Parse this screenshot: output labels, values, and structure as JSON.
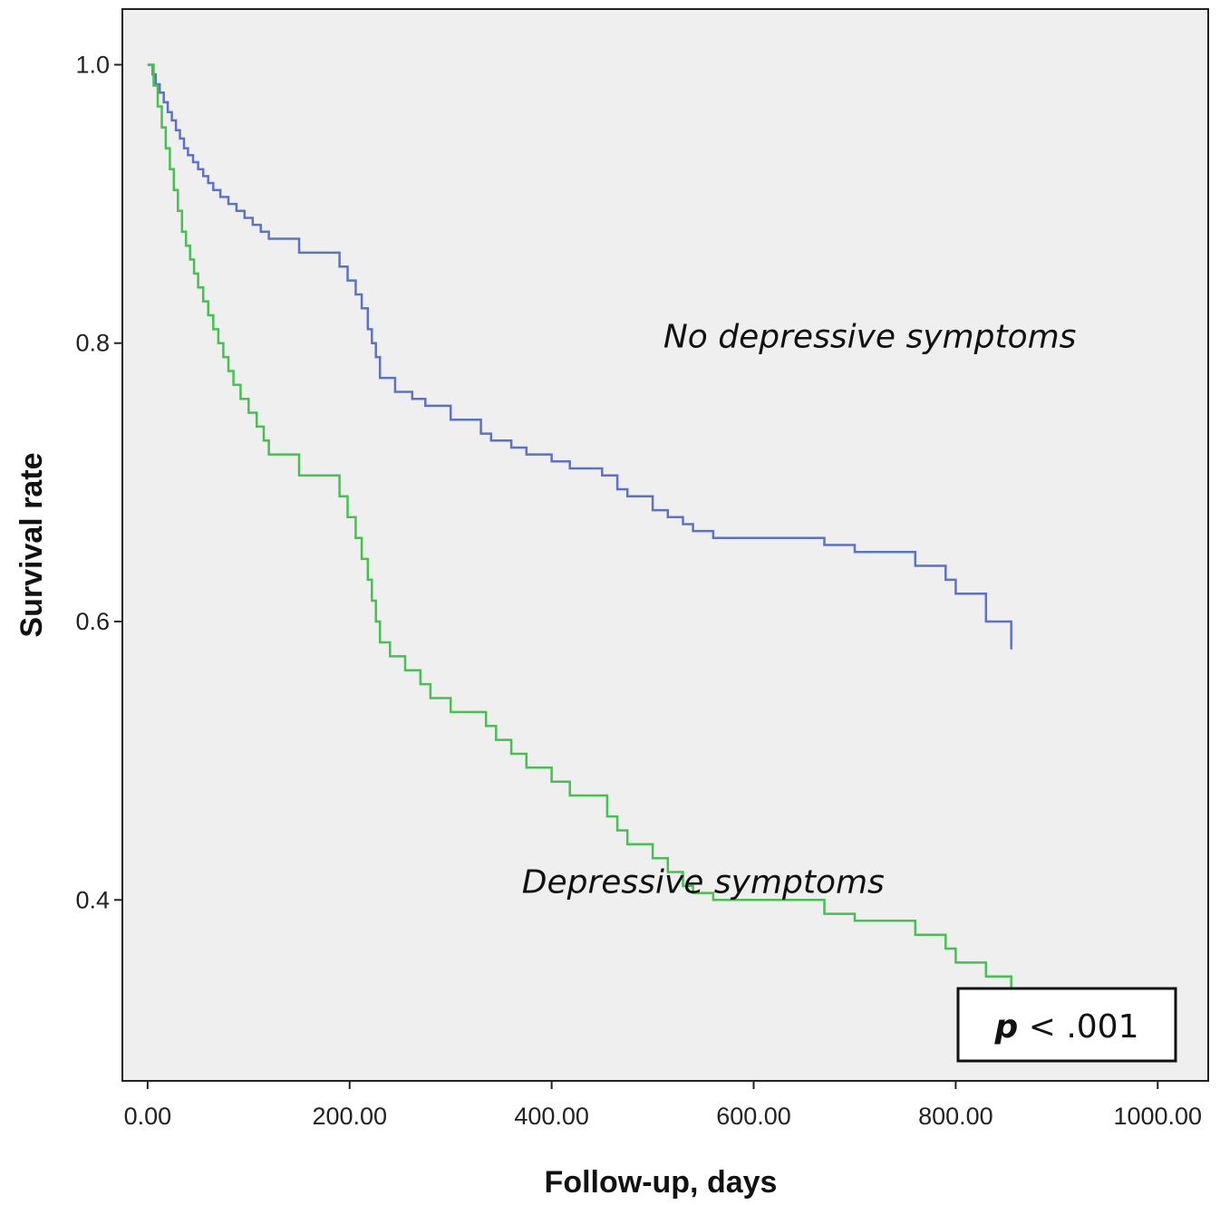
{
  "chart_data": {
    "type": "line",
    "step": true,
    "xlabel": "Follow-up, days",
    "ylabel": "Survival rate",
    "xlim": [
      -25,
      1050
    ],
    "ylim": [
      0.27,
      1.04
    ],
    "xticks": [
      0,
      200,
      400,
      600,
      800,
      1000
    ],
    "xtick_labels": [
      "0.00",
      "200.00",
      "400.00",
      "600.00",
      "800.00",
      "1000.00"
    ],
    "yticks": [
      0.4,
      0.6,
      0.8,
      1.0
    ],
    "ytick_labels": [
      "0.4",
      "0.6",
      "0.8",
      "1.0"
    ],
    "background": "#efefef",
    "grid": false,
    "legend": "none",
    "series": [
      {
        "name": "No depressive symptoms",
        "color": "#5b73c7",
        "x": [
          0,
          5,
          8,
          12,
          16,
          20,
          24,
          28,
          32,
          36,
          40,
          45,
          50,
          55,
          60,
          65,
          72,
          80,
          88,
          96,
          104,
          112,
          120,
          150,
          190,
          198,
          206,
          212,
          218,
          222,
          226,
          230,
          245,
          262,
          275,
          300,
          330,
          340,
          360,
          375,
          400,
          418,
          450,
          465,
          475,
          500,
          515,
          530,
          540,
          560,
          670,
          700,
          760,
          790,
          800,
          830,
          855
        ],
        "y": [
          1.0,
          0.993,
          0.986,
          0.98,
          0.973,
          0.966,
          0.96,
          0.953,
          0.947,
          0.94,
          0.935,
          0.93,
          0.925,
          0.92,
          0.915,
          0.91,
          0.905,
          0.9,
          0.895,
          0.89,
          0.885,
          0.88,
          0.875,
          0.865,
          0.855,
          0.845,
          0.835,
          0.825,
          0.81,
          0.8,
          0.79,
          0.775,
          0.765,
          0.76,
          0.755,
          0.745,
          0.735,
          0.73,
          0.725,
          0.72,
          0.715,
          0.71,
          0.705,
          0.695,
          0.69,
          0.68,
          0.675,
          0.67,
          0.665,
          0.66,
          0.655,
          0.65,
          0.64,
          0.63,
          0.62,
          0.6,
          0.58
        ]
      },
      {
        "name": "Depressive symptoms",
        "color": "#44c14f",
        "x": [
          0,
          6,
          10,
          14,
          18,
          22,
          26,
          30,
          34,
          38,
          42,
          46,
          50,
          55,
          60,
          65,
          70,
          75,
          80,
          85,
          92,
          100,
          108,
          115,
          120,
          150,
          190,
          198,
          206,
          212,
          218,
          222,
          226,
          230,
          240,
          255,
          270,
          280,
          300,
          335,
          345,
          360,
          375,
          400,
          418,
          455,
          465,
          475,
          500,
          515,
          530,
          540,
          560,
          670,
          700,
          760,
          790,
          800,
          830,
          855
        ],
        "y": [
          1.0,
          0.985,
          0.97,
          0.955,
          0.94,
          0.925,
          0.91,
          0.895,
          0.88,
          0.87,
          0.86,
          0.85,
          0.84,
          0.83,
          0.82,
          0.81,
          0.8,
          0.79,
          0.78,
          0.77,
          0.76,
          0.75,
          0.74,
          0.73,
          0.72,
          0.705,
          0.69,
          0.675,
          0.66,
          0.645,
          0.63,
          0.615,
          0.6,
          0.585,
          0.575,
          0.565,
          0.555,
          0.545,
          0.535,
          0.525,
          0.515,
          0.505,
          0.495,
          0.485,
          0.475,
          0.46,
          0.45,
          0.44,
          0.43,
          0.42,
          0.41,
          0.405,
          0.4,
          0.39,
          0.385,
          0.375,
          0.365,
          0.355,
          0.345,
          0.335
        ]
      }
    ],
    "annotations": [
      {
        "text": "No depressive symptoms",
        "x": 715,
        "y": 0.797
      },
      {
        "text": "Depressive symptoms",
        "x": 550,
        "y": 0.405
      }
    ],
    "pvalue": {
      "symbol": "p",
      "text": " < .001"
    }
  }
}
